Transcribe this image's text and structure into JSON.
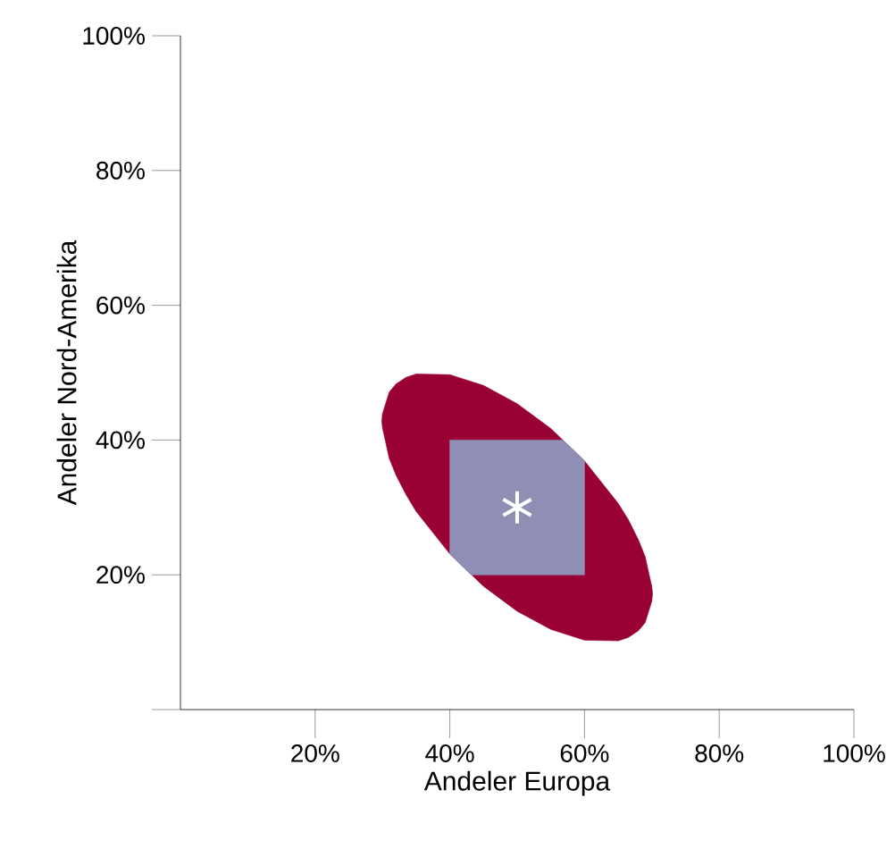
{
  "chart_data": {
    "type": "scatter",
    "xlabel": "Andeler Europa",
    "ylabel": "Andeler Nord-Amerika",
    "xlim": [
      0,
      100
    ],
    "ylim": [
      0,
      100
    ],
    "xticks": [
      {
        "value": 20,
        "label": "20%"
      },
      {
        "value": 40,
        "label": "40%"
      },
      {
        "value": 60,
        "label": "60%"
      },
      {
        "value": 80,
        "label": "80%"
      },
      {
        "value": 100,
        "label": "100%"
      }
    ],
    "yticks": [
      {
        "value": 0,
        "label": null
      },
      {
        "value": 20,
        "label": "20%"
      },
      {
        "value": 40,
        "label": "40%"
      },
      {
        "value": 60,
        "label": "60%"
      },
      {
        "value": 80,
        "label": "80%"
      },
      {
        "value": 100,
        "label": "100%"
      }
    ],
    "grid": false,
    "series": [
      {
        "type": "area",
        "color": "#990033",
        "x": [
          29.9,
          30,
          31,
          32,
          33.5,
          35,
          40,
          45,
          50,
          55,
          60,
          65,
          66.5,
          68,
          69,
          70,
          70.1,
          70,
          69,
          68,
          66.5,
          65,
          60,
          55,
          50,
          45,
          40,
          35,
          33.5,
          32,
          31,
          30
        ],
        "values": [
          42.8,
          43.9,
          47.1,
          48.3,
          49.3,
          49.8,
          49.7,
          48.1,
          45.4,
          41.7,
          36.9,
          30.6,
          28.2,
          25.2,
          22.7,
          18.2,
          17.2,
          16.1,
          12.9,
          11.7,
          10.7,
          10.2,
          10.3,
          11.9,
          14.6,
          18.3,
          23.1,
          29.4,
          31.9,
          34.8,
          37.3,
          41.8
        ]
      },
      {
        "type": "area",
        "color": "#8f8fb5",
        "x": [
          40,
          41.5,
          43.2,
          45,
          50,
          55,
          56.8,
          58.5,
          60,
          60,
          58.5,
          56.8,
          55,
          50,
          45,
          43.2,
          41.5,
          40
        ],
        "values": [
          40,
          40,
          40,
          40,
          40,
          40,
          40,
          38.4,
          36.9,
          20,
          20,
          20,
          20,
          20,
          20,
          20,
          21.6,
          23.1
        ]
      },
      {
        "type": "scatter",
        "color": "#ffffff",
        "marker": "cross",
        "x": [
          50
        ],
        "values": [
          30
        ]
      }
    ]
  }
}
